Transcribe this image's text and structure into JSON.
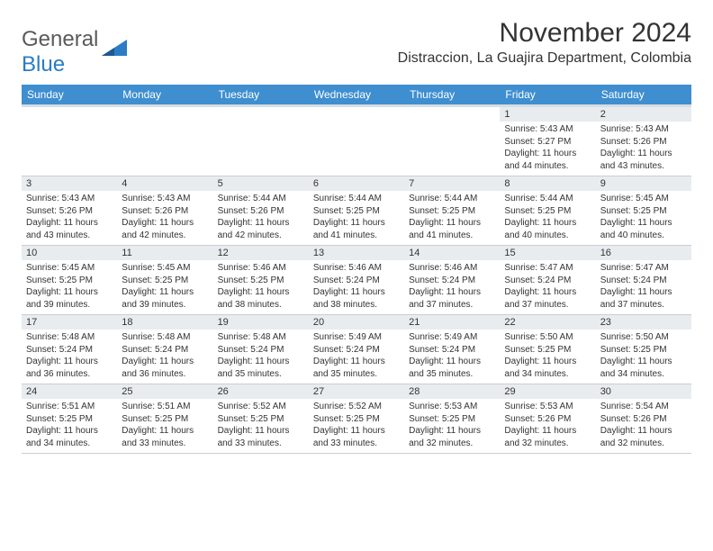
{
  "branding": {
    "logo_word1": "General",
    "logo_word2": "Blue",
    "logo_color_gray": "#5a5a5a",
    "logo_color_blue": "#2b7cc4"
  },
  "header": {
    "month": "November 2024",
    "location": "Distraccion, La Guajira Department, Colombia"
  },
  "styling": {
    "header_bg": "#3e8ed0",
    "header_fg": "#ffffff",
    "daynum_bg": "#e8ecef",
    "border_color": "#c9cfd5",
    "sub_border": "#d7dde2",
    "body_fontsize": 10,
    "th_fontsize": 12
  },
  "weekdays": [
    "Sunday",
    "Monday",
    "Tuesday",
    "Wednesday",
    "Thursday",
    "Friday",
    "Saturday"
  ],
  "weeks": [
    [
      null,
      null,
      null,
      null,
      null,
      {
        "n": "1",
        "sunrise": "Sunrise: 5:43 AM",
        "sunset": "Sunset: 5:27 PM",
        "day1": "Daylight: 11 hours",
        "day2": "and 44 minutes."
      },
      {
        "n": "2",
        "sunrise": "Sunrise: 5:43 AM",
        "sunset": "Sunset: 5:26 PM",
        "day1": "Daylight: 11 hours",
        "day2": "and 43 minutes."
      }
    ],
    [
      {
        "n": "3",
        "sunrise": "Sunrise: 5:43 AM",
        "sunset": "Sunset: 5:26 PM",
        "day1": "Daylight: 11 hours",
        "day2": "and 43 minutes."
      },
      {
        "n": "4",
        "sunrise": "Sunrise: 5:43 AM",
        "sunset": "Sunset: 5:26 PM",
        "day1": "Daylight: 11 hours",
        "day2": "and 42 minutes."
      },
      {
        "n": "5",
        "sunrise": "Sunrise: 5:44 AM",
        "sunset": "Sunset: 5:26 PM",
        "day1": "Daylight: 11 hours",
        "day2": "and 42 minutes."
      },
      {
        "n": "6",
        "sunrise": "Sunrise: 5:44 AM",
        "sunset": "Sunset: 5:25 PM",
        "day1": "Daylight: 11 hours",
        "day2": "and 41 minutes."
      },
      {
        "n": "7",
        "sunrise": "Sunrise: 5:44 AM",
        "sunset": "Sunset: 5:25 PM",
        "day1": "Daylight: 11 hours",
        "day2": "and 41 minutes."
      },
      {
        "n": "8",
        "sunrise": "Sunrise: 5:44 AM",
        "sunset": "Sunset: 5:25 PM",
        "day1": "Daylight: 11 hours",
        "day2": "and 40 minutes."
      },
      {
        "n": "9",
        "sunrise": "Sunrise: 5:45 AM",
        "sunset": "Sunset: 5:25 PM",
        "day1": "Daylight: 11 hours",
        "day2": "and 40 minutes."
      }
    ],
    [
      {
        "n": "10",
        "sunrise": "Sunrise: 5:45 AM",
        "sunset": "Sunset: 5:25 PM",
        "day1": "Daylight: 11 hours",
        "day2": "and 39 minutes."
      },
      {
        "n": "11",
        "sunrise": "Sunrise: 5:45 AM",
        "sunset": "Sunset: 5:25 PM",
        "day1": "Daylight: 11 hours",
        "day2": "and 39 minutes."
      },
      {
        "n": "12",
        "sunrise": "Sunrise: 5:46 AM",
        "sunset": "Sunset: 5:25 PM",
        "day1": "Daylight: 11 hours",
        "day2": "and 38 minutes."
      },
      {
        "n": "13",
        "sunrise": "Sunrise: 5:46 AM",
        "sunset": "Sunset: 5:24 PM",
        "day1": "Daylight: 11 hours",
        "day2": "and 38 minutes."
      },
      {
        "n": "14",
        "sunrise": "Sunrise: 5:46 AM",
        "sunset": "Sunset: 5:24 PM",
        "day1": "Daylight: 11 hours",
        "day2": "and 37 minutes."
      },
      {
        "n": "15",
        "sunrise": "Sunrise: 5:47 AM",
        "sunset": "Sunset: 5:24 PM",
        "day1": "Daylight: 11 hours",
        "day2": "and 37 minutes."
      },
      {
        "n": "16",
        "sunrise": "Sunrise: 5:47 AM",
        "sunset": "Sunset: 5:24 PM",
        "day1": "Daylight: 11 hours",
        "day2": "and 37 minutes."
      }
    ],
    [
      {
        "n": "17",
        "sunrise": "Sunrise: 5:48 AM",
        "sunset": "Sunset: 5:24 PM",
        "day1": "Daylight: 11 hours",
        "day2": "and 36 minutes."
      },
      {
        "n": "18",
        "sunrise": "Sunrise: 5:48 AM",
        "sunset": "Sunset: 5:24 PM",
        "day1": "Daylight: 11 hours",
        "day2": "and 36 minutes."
      },
      {
        "n": "19",
        "sunrise": "Sunrise: 5:48 AM",
        "sunset": "Sunset: 5:24 PM",
        "day1": "Daylight: 11 hours",
        "day2": "and 35 minutes."
      },
      {
        "n": "20",
        "sunrise": "Sunrise: 5:49 AM",
        "sunset": "Sunset: 5:24 PM",
        "day1": "Daylight: 11 hours",
        "day2": "and 35 minutes."
      },
      {
        "n": "21",
        "sunrise": "Sunrise: 5:49 AM",
        "sunset": "Sunset: 5:24 PM",
        "day1": "Daylight: 11 hours",
        "day2": "and 35 minutes."
      },
      {
        "n": "22",
        "sunrise": "Sunrise: 5:50 AM",
        "sunset": "Sunset: 5:25 PM",
        "day1": "Daylight: 11 hours",
        "day2": "and 34 minutes."
      },
      {
        "n": "23",
        "sunrise": "Sunrise: 5:50 AM",
        "sunset": "Sunset: 5:25 PM",
        "day1": "Daylight: 11 hours",
        "day2": "and 34 minutes."
      }
    ],
    [
      {
        "n": "24",
        "sunrise": "Sunrise: 5:51 AM",
        "sunset": "Sunset: 5:25 PM",
        "day1": "Daylight: 11 hours",
        "day2": "and 34 minutes."
      },
      {
        "n": "25",
        "sunrise": "Sunrise: 5:51 AM",
        "sunset": "Sunset: 5:25 PM",
        "day1": "Daylight: 11 hours",
        "day2": "and 33 minutes."
      },
      {
        "n": "26",
        "sunrise": "Sunrise: 5:52 AM",
        "sunset": "Sunset: 5:25 PM",
        "day1": "Daylight: 11 hours",
        "day2": "and 33 minutes."
      },
      {
        "n": "27",
        "sunrise": "Sunrise: 5:52 AM",
        "sunset": "Sunset: 5:25 PM",
        "day1": "Daylight: 11 hours",
        "day2": "and 33 minutes."
      },
      {
        "n": "28",
        "sunrise": "Sunrise: 5:53 AM",
        "sunset": "Sunset: 5:25 PM",
        "day1": "Daylight: 11 hours",
        "day2": "and 32 minutes."
      },
      {
        "n": "29",
        "sunrise": "Sunrise: 5:53 AM",
        "sunset": "Sunset: 5:26 PM",
        "day1": "Daylight: 11 hours",
        "day2": "and 32 minutes."
      },
      {
        "n": "30",
        "sunrise": "Sunrise: 5:54 AM",
        "sunset": "Sunset: 5:26 PM",
        "day1": "Daylight: 11 hours",
        "day2": "and 32 minutes."
      }
    ]
  ]
}
